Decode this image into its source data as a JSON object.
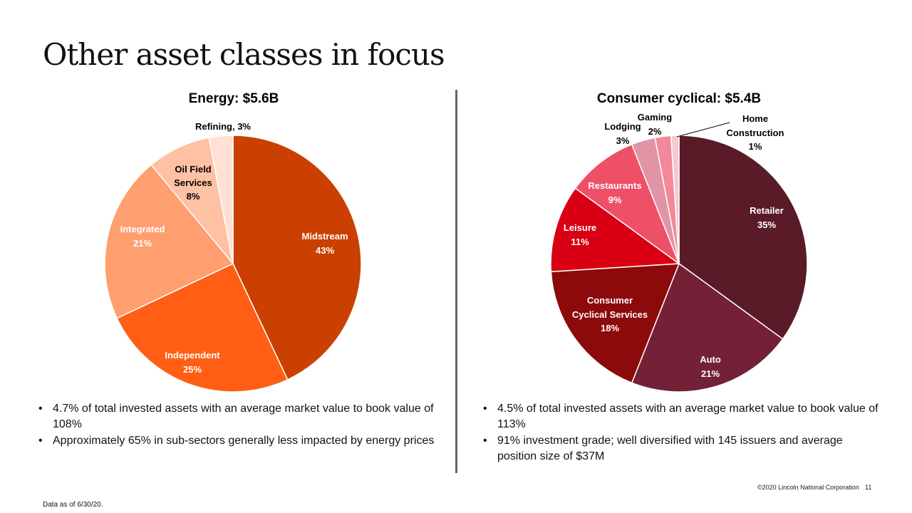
{
  "page": {
    "title": "Other asset classes in focus",
    "footer_copyright": "©2020 Lincoln National Corporation",
    "page_number": "11",
    "footnote": "Data as of 6/30/20."
  },
  "chart_data": [
    {
      "type": "pie",
      "title": "Energy: $5.6B",
      "slices": [
        {
          "label": "Midstream",
          "value": 43,
          "color": "#C94000",
          "label_color": "#ffffff"
        },
        {
          "label": "Independent",
          "value": 25,
          "color": "#FF5E14",
          "label_color": "#ffffff"
        },
        {
          "label": "Integrated",
          "value": 21,
          "color": "#FF9E6E",
          "label_color": "#ffffff"
        },
        {
          "label": "Oil Field Services",
          "value": 8,
          "color": "#FFC1A3",
          "label_color": "#000000"
        },
        {
          "label": "Refining",
          "value": 3,
          "color": "#FFE0D2",
          "label_color": "#000000"
        }
      ],
      "bullets": [
        "4.7% of total invested assets with an average market value to book value of 108%",
        "Approximately 65% in sub-sectors generally less impacted by energy prices"
      ]
    },
    {
      "type": "pie",
      "title": "Consumer cyclical: $5.4B",
      "slices": [
        {
          "label": "Retailer",
          "value": 35,
          "color": "#5A1A28",
          "label_color": "#ffffff"
        },
        {
          "label": "Auto",
          "value": 21,
          "color": "#742036",
          "label_color": "#ffffff"
        },
        {
          "label": "Consumer Cyclical Services",
          "value": 18,
          "color": "#8C0A0A",
          "label_color": "#ffffff"
        },
        {
          "label": "Leisure",
          "value": 11,
          "color": "#D80012",
          "label_color": "#ffffff"
        },
        {
          "label": "Restaurants",
          "value": 9,
          "color": "#EE5068",
          "label_color": "#ffffff"
        },
        {
          "label": "Lodging",
          "value": 3,
          "color": "#E094A6",
          "label_color": "#000000"
        },
        {
          "label": "Gaming",
          "value": 2,
          "color": "#F38898",
          "label_color": "#000000"
        },
        {
          "label": "Home Construction",
          "value": 1,
          "color": "#F5C8D2",
          "label_color": "#000000"
        }
      ],
      "bullets": [
        "4.5% of total invested assets with an average market value to book value of 113%",
        "91% investment grade; well diversified with 145 issuers and average position size of $37M"
      ]
    }
  ]
}
